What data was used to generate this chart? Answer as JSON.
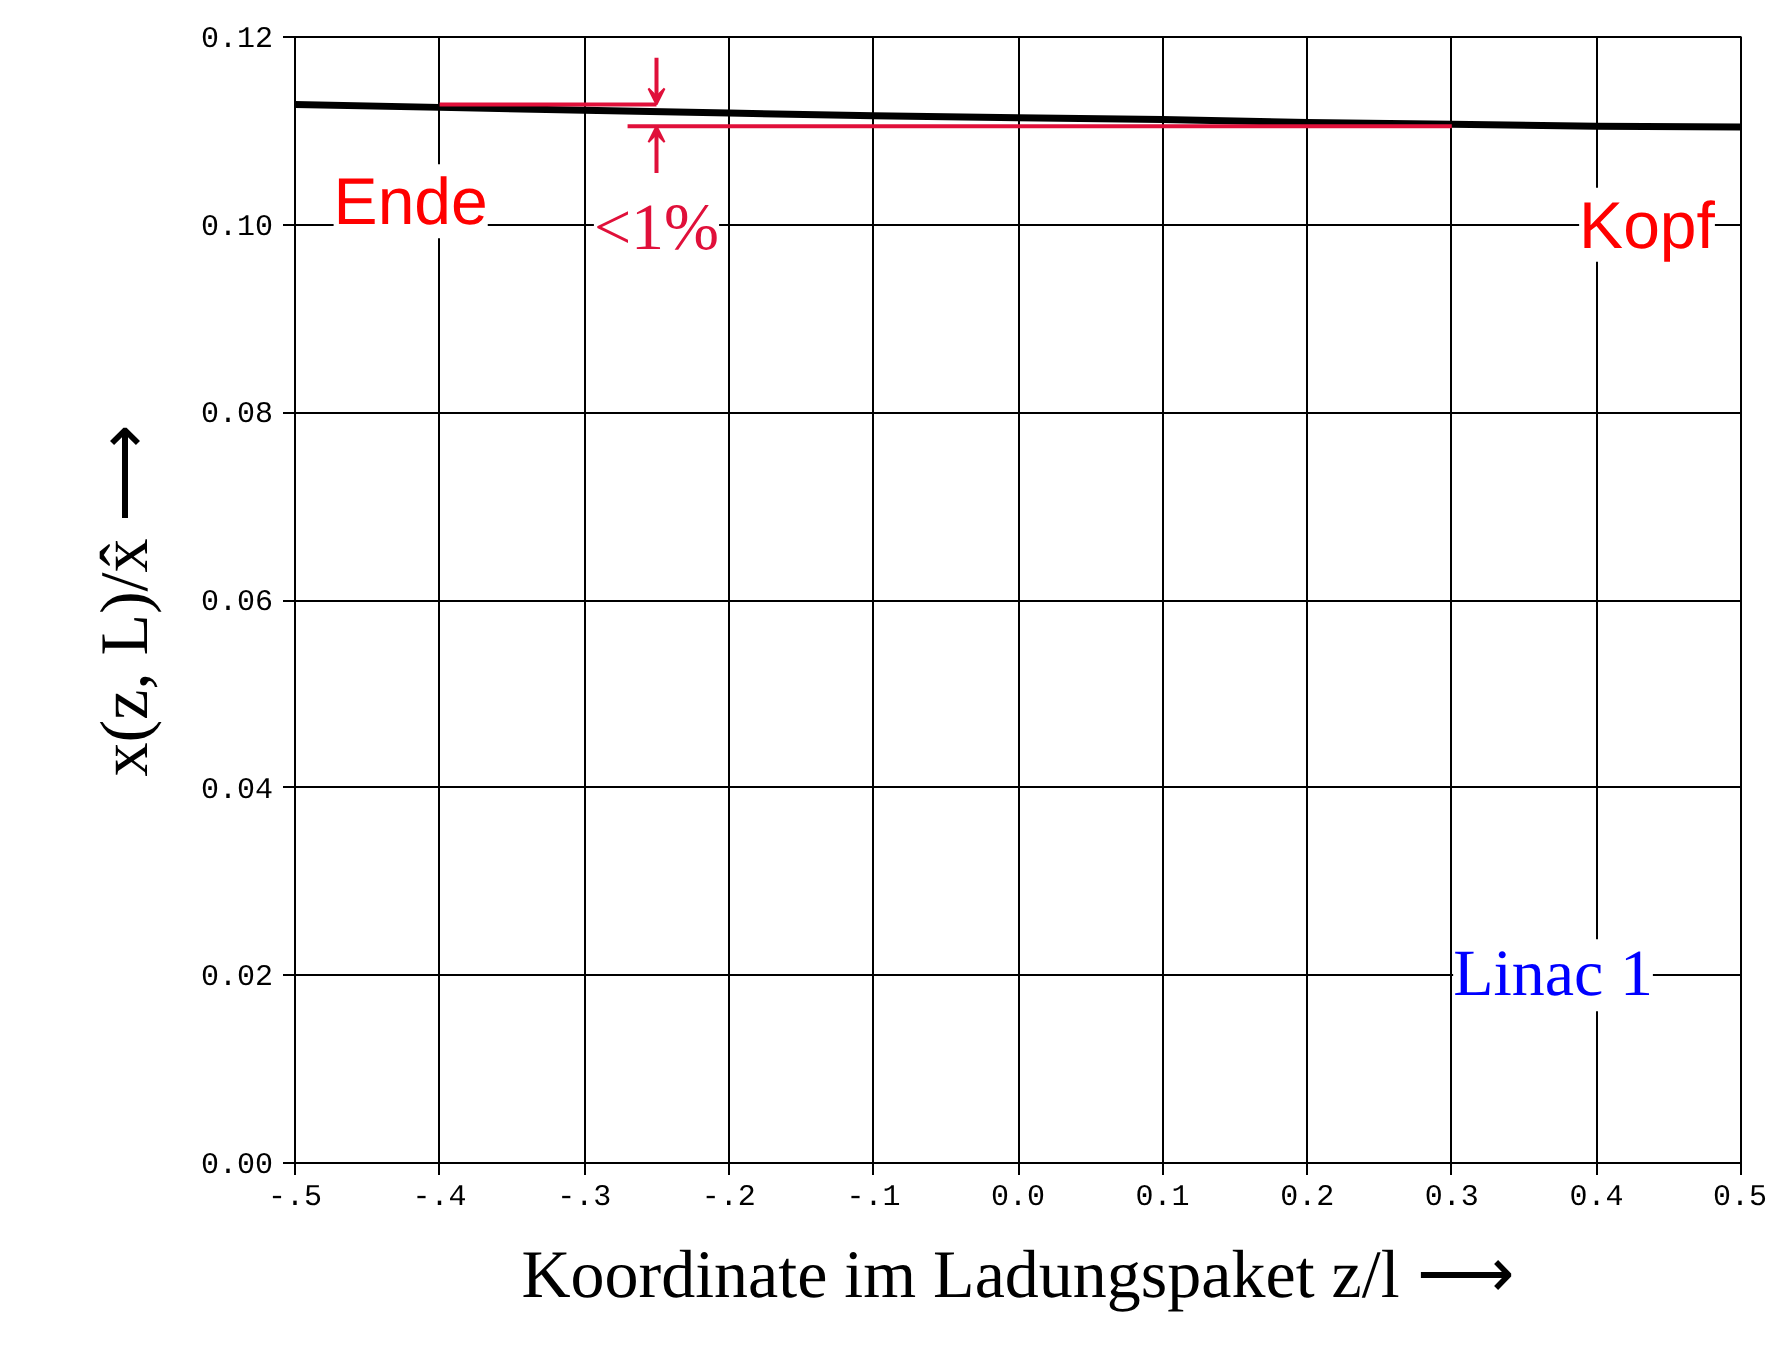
{
  "chart_data": {
    "type": "line",
    "xlabel": "Koordinate im Ladungspaket z/l ⟶",
    "ylabel": "x(z, L)/x̂ ⟶",
    "x": [
      -0.5,
      -0.4,
      -0.3,
      -0.2,
      -0.1,
      0.0,
      0.1,
      0.2,
      0.3,
      0.4,
      0.5
    ],
    "series": [
      {
        "color": "#000000",
        "values": [
          0.1128,
          0.1125,
          0.1122,
          0.1119,
          0.1116,
          0.1114,
          0.1112,
          0.1109,
          0.1107,
          0.1105,
          0.1104
        ]
      },
      {
        "color": "#e0103a",
        "x": [
          -0.4,
          -0.25
        ],
        "values": [
          0.1128,
          0.1128
        ]
      },
      {
        "color": "#e0103a",
        "x": [
          -0.27,
          0.3
        ],
        "values": [
          0.1105,
          0.1105
        ]
      }
    ],
    "xlim": [
      -0.5,
      0.5
    ],
    "ylim": [
      0,
      0.12
    ],
    "xticks": [
      {
        "value": -0.5,
        "label": "-.5"
      },
      {
        "value": -0.4,
        "label": "-.4"
      },
      {
        "value": -0.3,
        "label": "-.3"
      },
      {
        "value": -0.2,
        "label": "-.2"
      },
      {
        "value": -0.1,
        "label": "-.1"
      },
      {
        "value": 0,
        "label": "0.0"
      },
      0.1,
      0.2,
      0.3,
      0.4,
      0.5
    ],
    "yticks": [
      {
        "value": 0,
        "label": "0.00"
      },
      0.02,
      0.04,
      0.06,
      0.08,
      {
        "value": 0.1,
        "label": "0.10"
      },
      0.12
    ],
    "grid": true,
    "marker": "none",
    "line_style": "solid",
    "annotations": [
      "Ende",
      "<1%",
      "Kopf",
      "Linac 1"
    ]
  }
}
